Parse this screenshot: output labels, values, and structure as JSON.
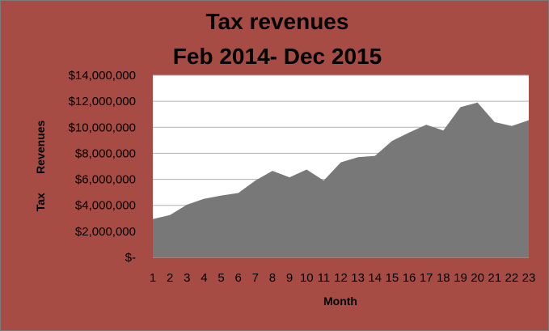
{
  "chart_data": {
    "type": "area",
    "title": "Tax revenues",
    "subtitle": "Feb 2014- Dec 2015",
    "xlabel": "Month",
    "ylabel": "Tax      Revenues",
    "x": [
      1,
      2,
      3,
      4,
      5,
      6,
      7,
      8,
      9,
      10,
      11,
      12,
      13,
      14,
      15,
      16,
      17,
      18,
      19,
      20,
      21,
      22,
      23
    ],
    "series": [
      {
        "values": [
          2950000,
          3250000,
          4050000,
          4500000,
          4750000,
          4950000,
          5900000,
          6650000,
          6150000,
          6750000,
          5900000,
          7300000,
          7700000,
          7800000,
          8950000,
          9600000,
          10200000,
          9750000,
          11550000,
          11900000,
          10400000,
          10100000,
          10550000
        ]
      }
    ],
    "y_ticks": [
      "$-",
      "$2,000,000",
      "$4,000,000",
      "$6,000,000",
      "$8,000,000",
      "$10,000,000",
      "$12,000,000",
      "$14,000,000"
    ],
    "ylim": [
      0,
      14000000
    ],
    "grid": true,
    "colors": {
      "background": "#a64c45",
      "plot_area": "#ffffff",
      "area_fill": "#787878",
      "gridline": "#b0b0b0"
    }
  }
}
